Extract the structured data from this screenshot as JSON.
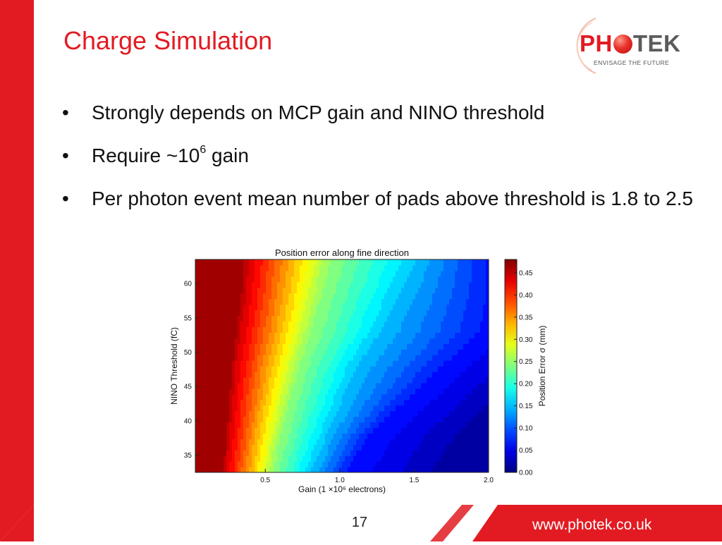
{
  "slide": {
    "title": "Charge Simulation",
    "bullet_symbol": "•",
    "bullets": {
      "b1": "Strongly depends on MCP gain and NINO threshold",
      "b2_prefix": "Require ~10",
      "b2_sup": "6",
      "b2_suffix": " gain",
      "b3": "Per photon event mean number of pads above threshold is 1.8 to 2.5"
    },
    "page_number": "17",
    "url": "www.photek.co.uk"
  },
  "logo": {
    "text_pre": "PH",
    "text_post": "TEK",
    "tagline": "ENVISAGE THE FUTURE"
  },
  "colors": {
    "brand_red": "#e21b22",
    "logo_grey": "#5b5b5b",
    "text": "#111111"
  },
  "chart_data": {
    "type": "heatmap",
    "title": "Position error along fine direction",
    "xlabel": "Gain (1 ×10⁶ electrons)",
    "ylabel": "NINO Threshold (fC)",
    "colorbar_label": "Position Error σ (mm)",
    "xlim": [
      0.03,
      2.0
    ],
    "ylim": [
      32.5,
      63.5
    ],
    "x_ticks": [
      {
        "value": 0.5,
        "label": "0.5"
      },
      {
        "value": 1.0,
        "label": "1.0"
      },
      {
        "value": 1.5,
        "label": "1.5"
      },
      {
        "value": 2.0,
        "label": "2.0"
      }
    ],
    "y_ticks": [
      {
        "value": 35,
        "label": "35"
      },
      {
        "value": 40,
        "label": "40"
      },
      {
        "value": 45,
        "label": "45"
      },
      {
        "value": 50,
        "label": "50"
      },
      {
        "value": 55,
        "label": "55"
      },
      {
        "value": 60,
        "label": "60"
      }
    ],
    "colorbar_range": [
      0.0,
      0.48
    ],
    "colorbar_ticks": [
      {
        "value": 0.0,
        "label": "0.00"
      },
      {
        "value": 0.05,
        "label": "0.05"
      },
      {
        "value": 0.1,
        "label": "0.10"
      },
      {
        "value": 0.15,
        "label": "0.15"
      },
      {
        "value": 0.2,
        "label": "0.20"
      },
      {
        "value": 0.25,
        "label": "0.25"
      },
      {
        "value": 0.3,
        "label": "0.30"
      },
      {
        "value": 0.35,
        "label": "0.35"
      },
      {
        "value": 0.4,
        "label": "0.40"
      },
      {
        "value": 0.45,
        "label": "0.45"
      }
    ],
    "colormap": "jet",
    "description_points": {
      "threshold_fC": [
        33,
        38,
        43,
        48,
        53,
        58,
        63
      ],
      "gain_at_0.45mm": [
        0.22,
        0.24,
        0.26,
        0.28,
        0.31,
        0.34,
        0.36
      ],
      "gain_at_0.25mm": [
        0.55,
        0.6,
        0.66,
        0.72,
        0.8,
        0.86,
        0.92
      ],
      "gain_at_0.15mm": [
        0.82,
        0.92,
        1.02,
        1.12,
        1.28,
        1.4,
        1.52
      ],
      "gain_at_0.07mm": [
        1.05,
        1.2,
        1.45,
        1.7,
        1.95,
        2.0,
        2.0
      ]
    }
  }
}
